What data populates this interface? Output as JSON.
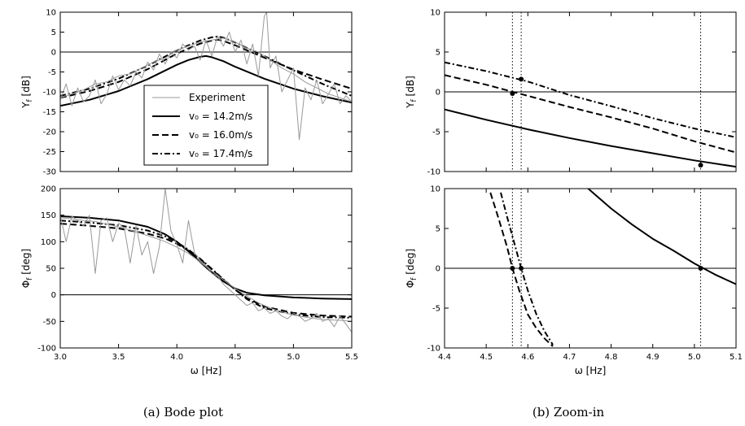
{
  "captions": {
    "a": "(a)  Bode plot",
    "b": "(b)  Zoom-in"
  },
  "legend": {
    "entries": [
      {
        "label": "Experiment",
        "style": "experiment"
      },
      {
        "label": "v₀ = 14.2m/s",
        "style": "solid"
      },
      {
        "label": "v₀ = 16.0m/s",
        "style": "dashed"
      },
      {
        "label": "v₀ = 17.4m/s",
        "style": "dashdot"
      }
    ]
  },
  "colors": {
    "model": "#000000",
    "experiment": "#999999"
  },
  "chart_data": [
    {
      "id": "bode-magnitude",
      "type": "line",
      "ylabel": "Y_f [dB]",
      "xlim": [
        3.0,
        5.5
      ],
      "ylim": [
        -30,
        10
      ],
      "xticks": [
        3.0,
        3.5,
        4.0,
        4.5,
        5.0,
        5.5
      ],
      "xticklabels": [
        "",
        "",
        "",
        "",
        "",
        ""
      ],
      "yticks": [
        -30,
        -25,
        -20,
        -15,
        -10,
        -5,
        0,
        5,
        10
      ],
      "hline": 0,
      "series": [
        {
          "name": "v₀ = 14.2m/s",
          "style": "solid",
          "x": [
            3.0,
            3.25,
            3.5,
            3.75,
            4.0,
            4.1,
            4.2,
            4.25,
            4.3,
            4.4,
            4.5,
            4.75,
            5.0,
            5.25,
            5.5
          ],
          "y": [
            -13.5,
            -12.0,
            -9.8,
            -6.8,
            -3.2,
            -2.0,
            -1.2,
            -1.0,
            -1.3,
            -2.3,
            -3.7,
            -6.7,
            -9.2,
            -11.1,
            -12.7
          ]
        },
        {
          "name": "v₀ = 16.0m/s",
          "style": "dashed",
          "x": [
            3.0,
            3.25,
            3.5,
            3.75,
            4.0,
            4.1,
            4.2,
            4.3,
            4.35,
            4.4,
            4.5,
            4.75,
            5.0,
            5.25,
            5.5
          ],
          "y": [
            -11.5,
            -9.8,
            -7.5,
            -4.3,
            -0.4,
            0.9,
            2.1,
            2.9,
            3.1,
            2.8,
            1.7,
            -1.4,
            -4.4,
            -6.9,
            -9.2
          ]
        },
        {
          "name": "v₀ = 17.4m/s",
          "style": "dashdot",
          "x": [
            3.0,
            3.25,
            3.5,
            3.75,
            4.0,
            4.1,
            4.2,
            4.3,
            4.35,
            4.4,
            4.5,
            4.75,
            5.0,
            5.25,
            5.5
          ],
          "y": [
            -11.0,
            -9.2,
            -6.7,
            -3.4,
            0.4,
            1.7,
            2.9,
            3.7,
            3.9,
            3.6,
            2.4,
            -1.0,
            -4.6,
            -8.0,
            -11.0
          ]
        },
        {
          "name": "Experiment",
          "style": "experiment",
          "x": [
            3.0,
            3.05,
            3.1,
            3.15,
            3.2,
            3.25,
            3.3,
            3.35,
            3.4,
            3.45,
            3.5,
            3.55,
            3.6,
            3.65,
            3.7,
            3.75,
            3.8,
            3.85,
            3.9,
            3.95,
            4.0,
            4.05,
            4.1,
            4.15,
            4.2,
            4.25,
            4.3,
            4.35,
            4.4,
            4.45,
            4.5,
            4.55,
            4.6,
            4.65,
            4.7,
            4.75,
            4.77,
            4.8,
            4.85,
            4.9,
            4.95,
            5.0,
            5.05,
            5.1,
            5.15,
            5.2,
            5.25,
            5.3,
            5.35,
            5.4,
            5.45,
            5.5
          ],
          "y": [
            -12,
            -8,
            -13.5,
            -9,
            -12.5,
            -11,
            -7,
            -13,
            -10.5,
            -6,
            -9.5,
            -7,
            -8.5,
            -5,
            -6.5,
            -2.5,
            -4.5,
            -0.5,
            -3,
            0,
            -1.5,
            2,
            0.5,
            1.5,
            -2,
            3,
            -1,
            4,
            1.5,
            5,
            0,
            3,
            -3,
            2,
            -6,
            9,
            10,
            -4,
            -1,
            -10,
            -7,
            -4,
            -22,
            -9,
            -12,
            -7,
            -13,
            -10.5,
            -8,
            -13,
            -11,
            -12.5
          ]
        },
        {
          "name": "Experiment",
          "style": "experiment",
          "x": [
            3.0,
            3.1,
            3.2,
            3.3,
            3.4,
            3.5,
            3.6,
            3.7,
            3.8,
            3.9,
            4.0,
            4.1,
            4.2,
            4.3,
            4.4,
            4.5,
            4.6,
            4.7,
            4.8,
            4.9,
            5.0,
            5.1,
            5.2,
            5.3,
            5.4,
            5.5
          ],
          "y": [
            -11.5,
            -10.5,
            -9.5,
            -8,
            -7.5,
            -6,
            -5.5,
            -4,
            -2.5,
            -1.5,
            0.5,
            1.5,
            2.5,
            3,
            3.5,
            2.5,
            1,
            0,
            -2,
            -4,
            -5.5,
            -7.5,
            -9,
            -10.5,
            -11.5,
            -12.5
          ]
        }
      ]
    },
    {
      "id": "bode-phase",
      "type": "line",
      "ylabel": "Φ_f [deg]",
      "xlabel": "ω [Hz]",
      "xlim": [
        3.0,
        5.5
      ],
      "ylim": [
        -100,
        200
      ],
      "xticks": [
        3.0,
        3.5,
        4.0,
        4.5,
        5.0,
        5.5
      ],
      "xticklabels": [
        "3.0",
        "3.5",
        "4.0",
        "4.5",
        "5.0",
        "5.5"
      ],
      "yticks": [
        -100,
        -50,
        0,
        50,
        100,
        150,
        200
      ],
      "hline": 0,
      "series": [
        {
          "name": "v₀ = 14.2m/s",
          "style": "solid",
          "x": [
            3.0,
            3.25,
            3.5,
            3.75,
            3.9,
            4.0,
            4.1,
            4.2,
            4.3,
            4.4,
            4.5,
            4.6,
            4.75,
            5.0,
            5.25,
            5.5
          ],
          "y": [
            148,
            145,
            140,
            128,
            114,
            100,
            82,
            62,
            42,
            25,
            12,
            4,
            -1,
            -5,
            -7,
            -8
          ]
        },
        {
          "name": "v₀ = 16.0m/s",
          "style": "dashed",
          "x": [
            3.0,
            3.25,
            3.5,
            3.75,
            3.9,
            4.0,
            4.1,
            4.2,
            4.3,
            4.4,
            4.5,
            4.6,
            4.75,
            5.0,
            5.25,
            5.5
          ],
          "y": [
            134,
            130,
            125,
            115,
            106,
            96,
            83,
            67,
            48,
            28,
            10,
            -6,
            -22,
            -34,
            -39,
            -41
          ]
        },
        {
          "name": "v₀ = 17.4m/s",
          "style": "dashdot",
          "x": [
            3.0,
            3.25,
            3.5,
            3.75,
            3.9,
            4.0,
            4.1,
            4.2,
            4.3,
            4.4,
            4.5,
            4.6,
            4.75,
            5.0,
            5.25,
            5.5
          ],
          "y": [
            140,
            136,
            131,
            121,
            110,
            99,
            85,
            68,
            49,
            29,
            10,
            -8,
            -25,
            -37,
            -42,
            -43
          ]
        },
        {
          "name": "Experiment",
          "style": "experiment",
          "x": [
            3.0,
            3.05,
            3.1,
            3.15,
            3.2,
            3.25,
            3.3,
            3.35,
            3.4,
            3.45,
            3.5,
            3.55,
            3.6,
            3.65,
            3.7,
            3.75,
            3.8,
            3.85,
            3.9,
            3.95,
            4.0,
            4.05,
            4.1,
            4.15,
            4.2,
            4.25,
            4.3,
            4.35,
            4.4,
            4.45,
            4.5,
            4.55,
            4.6,
            4.65,
            4.7,
            4.75,
            4.8,
            4.85,
            4.9,
            4.95,
            5.0,
            5.05,
            5.1,
            5.15,
            5.2,
            5.25,
            5.3,
            5.35,
            5.4,
            5.45,
            5.5
          ],
          "y": [
            150,
            100,
            148,
            140,
            130,
            150,
            40,
            140,
            145,
            100,
            135,
            125,
            60,
            130,
            75,
            100,
            40,
            90,
            200,
            120,
            95,
            60,
            140,
            80,
            65,
            55,
            40,
            35,
            20,
            10,
            0,
            -10,
            -20,
            -15,
            -30,
            -25,
            -35,
            -30,
            -40,
            -45,
            -35,
            -40,
            -50,
            -45,
            -35,
            -50,
            -45,
            -60,
            -40,
            -55,
            -70
          ]
        },
        {
          "name": "Experiment",
          "style": "experiment",
          "x": [
            3.0,
            3.1,
            3.2,
            3.3,
            3.4,
            3.5,
            3.6,
            3.7,
            3.8,
            3.9,
            4.0,
            4.1,
            4.2,
            4.3,
            4.4,
            4.5,
            4.6,
            4.7,
            4.8,
            4.9,
            5.0,
            5.1,
            5.2,
            5.3,
            5.4,
            5.5
          ],
          "y": [
            145,
            143,
            140,
            138,
            133,
            128,
            122,
            115,
            108,
            100,
            90,
            78,
            62,
            45,
            28,
            12,
            -2,
            -15,
            -25,
            -32,
            -38,
            -42,
            -45,
            -47,
            -48,
            -50
          ]
        }
      ]
    },
    {
      "id": "zoom-magnitude",
      "type": "line",
      "ylabel": "Y_f [dB]",
      "xlim": [
        4.4,
        5.1
      ],
      "ylim": [
        -10,
        10
      ],
      "xticks": [
        4.4,
        4.5,
        4.6,
        4.7,
        4.8,
        4.9,
        5.0,
        5.1
      ],
      "xticklabels": [
        "",
        "",
        "",
        "",
        "",
        "",
        "",
        ""
      ],
      "yticks": [
        -10,
        -5,
        0,
        5,
        10
      ],
      "hline": 0,
      "vlines": [
        4.563,
        4.584,
        5.015
      ],
      "points": [
        {
          "x": 4.563,
          "y": -0.2
        },
        {
          "x": 4.584,
          "y": 1.6
        },
        {
          "x": 5.015,
          "y": -9.2
        }
      ],
      "series": [
        {
          "name": "v₀ = 14.2m/s",
          "style": "solid",
          "x": [
            4.4,
            4.5,
            4.6,
            4.7,
            4.8,
            4.9,
            5.0,
            5.1
          ],
          "y": [
            -2.2,
            -3.5,
            -4.7,
            -5.8,
            -6.8,
            -7.7,
            -8.6,
            -9.4
          ]
        },
        {
          "name": "v₀ = 16.0m/s",
          "style": "dashed",
          "x": [
            4.4,
            4.5,
            4.6,
            4.7,
            4.8,
            4.9,
            5.0,
            5.1
          ],
          "y": [
            2.1,
            0.9,
            -0.5,
            -1.9,
            -3.2,
            -4.6,
            -6.2,
            -7.6
          ]
        },
        {
          "name": "v₀ = 17.4m/s",
          "style": "dashdot",
          "x": [
            4.4,
            4.5,
            4.6,
            4.7,
            4.8,
            4.9,
            5.0,
            5.1
          ],
          "y": [
            3.7,
            2.6,
            1.3,
            -0.4,
            -1.8,
            -3.3,
            -4.6,
            -5.7
          ]
        }
      ]
    },
    {
      "id": "zoom-phase",
      "type": "line",
      "ylabel": "Φ_f [deg]",
      "xlabel": "ω [Hz]",
      "xlim": [
        4.4,
        5.1
      ],
      "ylim": [
        -10,
        10
      ],
      "xticks": [
        4.4,
        4.5,
        4.6,
        4.7,
        4.8,
        4.9,
        5.0,
        5.1
      ],
      "xticklabels": [
        "4.4",
        "4.5",
        "4.6",
        "4.7",
        "4.8",
        "4.9",
        "5.0",
        "5.1"
      ],
      "yticks": [
        -10,
        -5,
        0,
        5,
        10
      ],
      "hline": 0,
      "vlines": [
        4.563,
        4.584,
        5.015
      ],
      "points": [
        {
          "x": 4.563,
          "y": 0
        },
        {
          "x": 4.584,
          "y": 0
        },
        {
          "x": 5.015,
          "y": 0
        }
      ],
      "series": [
        {
          "name": "v₀ = 14.2m/s",
          "style": "solid",
          "x": [
            4.745,
            4.8,
            4.85,
            4.9,
            4.95,
            5.0,
            5.05,
            5.1
          ],
          "y": [
            10,
            7.5,
            5.5,
            3.7,
            2.2,
            0.6,
            -0.8,
            -2.0
          ]
        },
        {
          "name": "v₀ = 16.0m/s",
          "style": "dashed",
          "x": [
            4.51,
            4.53,
            4.55,
            4.563,
            4.58,
            4.6,
            4.62,
            4.64,
            4.66
          ],
          "y": [
            9.5,
            6.2,
            2.7,
            0,
            -2.9,
            -5.8,
            -7.5,
            -8.8,
            -9.8
          ]
        },
        {
          "name": "v₀ = 17.4m/s",
          "style": "dashdot",
          "x": [
            4.535,
            4.55,
            4.57,
            4.584,
            4.6,
            4.62,
            4.64,
            4.66
          ],
          "y": [
            9.5,
            6.5,
            2.7,
            0,
            -2.8,
            -5.7,
            -7.9,
            -9.6
          ]
        }
      ]
    }
  ]
}
